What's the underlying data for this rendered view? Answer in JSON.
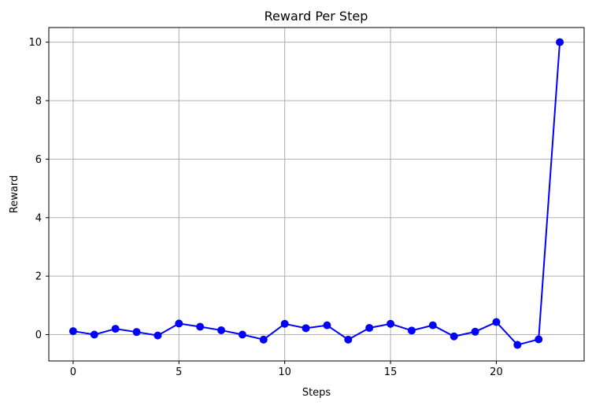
{
  "chart_data": {
    "type": "line",
    "title": "Reward Per Step",
    "xlabel": "Steps",
    "ylabel": "Reward",
    "xlim": [
      -1.15,
      24.15
    ],
    "ylim": [
      -0.9,
      10.5
    ],
    "xticks": [
      0,
      5,
      10,
      15,
      20
    ],
    "yticks": [
      0,
      2,
      4,
      6,
      8,
      10
    ],
    "grid": true,
    "marker": "circle",
    "colors": {
      "line": "#0000ff",
      "grid": "#b0b0b0"
    },
    "series": [
      {
        "x": [
          0,
          1,
          2,
          3,
          4,
          5,
          6,
          7,
          8,
          9,
          10,
          11,
          12,
          13,
          14,
          15,
          16,
          17,
          18,
          19,
          20,
          21,
          22,
          23
        ],
        "values": [
          0.12,
          0.0,
          0.2,
          0.09,
          -0.03,
          0.38,
          0.27,
          0.15,
          0.0,
          -0.17,
          0.37,
          0.22,
          0.32,
          -0.17,
          0.23,
          0.37,
          0.14,
          0.32,
          -0.06,
          0.1,
          0.43,
          -0.35,
          -0.16,
          10.0
        ]
      }
    ]
  }
}
